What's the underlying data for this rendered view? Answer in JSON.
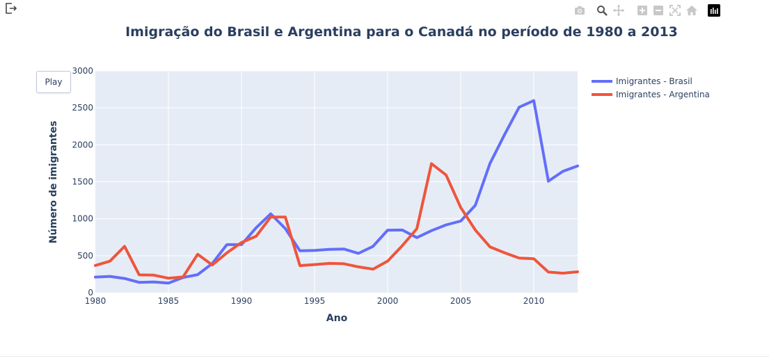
{
  "controls": {
    "play_label": "Play"
  },
  "icons": {
    "exit": "exit-icon",
    "modebar": [
      "camera-icon",
      "zoom-icon",
      "pan-icon",
      "zoom-in-icon",
      "zoom-out-icon",
      "autoscale-icon",
      "reset-axes-icon",
      "plotly-logo-icon"
    ]
  },
  "colors": {
    "brasil": "#636efa",
    "argentina": "#ef553b",
    "plot_bg": "#e5ecf6",
    "text": "#2a3f5f"
  },
  "chart_data": {
    "type": "line",
    "title": "Imigração do Brasil e Argentina para o Canadá no período de 1980 a 2013",
    "xlabel": "Ano",
    "ylabel": "Número de imigrantes",
    "xlim": [
      1980,
      2013
    ],
    "ylim": [
      0,
      3000
    ],
    "xticks": [
      1980,
      1985,
      1990,
      1995,
      2000,
      2005,
      2010
    ],
    "yticks": [
      0,
      500,
      1000,
      1500,
      2000,
      2500,
      3000
    ],
    "grid": true,
    "legend_position": "top-right",
    "x": [
      1980,
      1981,
      1982,
      1983,
      1984,
      1985,
      1986,
      1987,
      1988,
      1989,
      1990,
      1991,
      1992,
      1993,
      1994,
      1995,
      1996,
      1997,
      1998,
      1999,
      2000,
      2001,
      2002,
      2003,
      2004,
      2005,
      2006,
      2007,
      2008,
      2009,
      2010,
      2011,
      2012,
      2013
    ],
    "series": [
      {
        "name": "Imigrantes - Brasil",
        "color": "#636efa",
        "values": [
          211,
          220,
          192,
          139,
          145,
          130,
          205,
          244,
          394,
          650,
          650,
          877,
          1066,
          866,
          566,
          572,
          586,
          591,
          531,
          626,
          845,
          847,
          745,
          839,
          917,
          969,
          1181,
          1746,
          2138,
          2509,
          2598,
          1508,
          1642,
          1714
        ]
      },
      {
        "name": "Imigrantes - Argentina",
        "color": "#ef553b",
        "values": [
          368,
          426,
          626,
          241,
          237,
          196,
          213,
          519,
          374,
          538,
          678,
          763,
          1023,
          1022,
          366,
          380,
          396,
          391,
          349,
          318,
          427,
          635,
          865,
          1745,
          1591,
          1153,
          847,
          620,
          540,
          467,
          459,
          278,
          263,
          282
        ]
      }
    ]
  }
}
